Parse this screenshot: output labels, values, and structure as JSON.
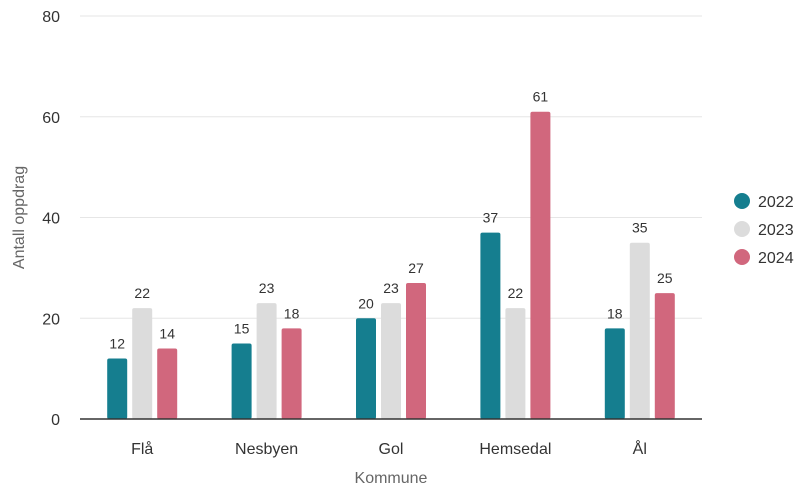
{
  "chart_data": {
    "type": "bar",
    "title": "",
    "xlabel": "Kommune",
    "ylabel": "Antall oppdrag",
    "ylim": [
      0,
      80
    ],
    "yticks": [
      0,
      20,
      40,
      60,
      80
    ],
    "grid": true,
    "legend_position": "right",
    "categories": [
      "Flå",
      "Nesbyen",
      "Gol",
      "Hemsedal",
      "Ål"
    ],
    "series": [
      {
        "name": "2022",
        "color": "#157e8f",
        "values": [
          12,
          15,
          20,
          37,
          18
        ]
      },
      {
        "name": "2023",
        "color": "#dcdcdc",
        "values": [
          22,
          23,
          23,
          22,
          35
        ]
      },
      {
        "name": "2024",
        "color": "#d1677d",
        "values": [
          14,
          18,
          27,
          61,
          25
        ]
      }
    ]
  }
}
